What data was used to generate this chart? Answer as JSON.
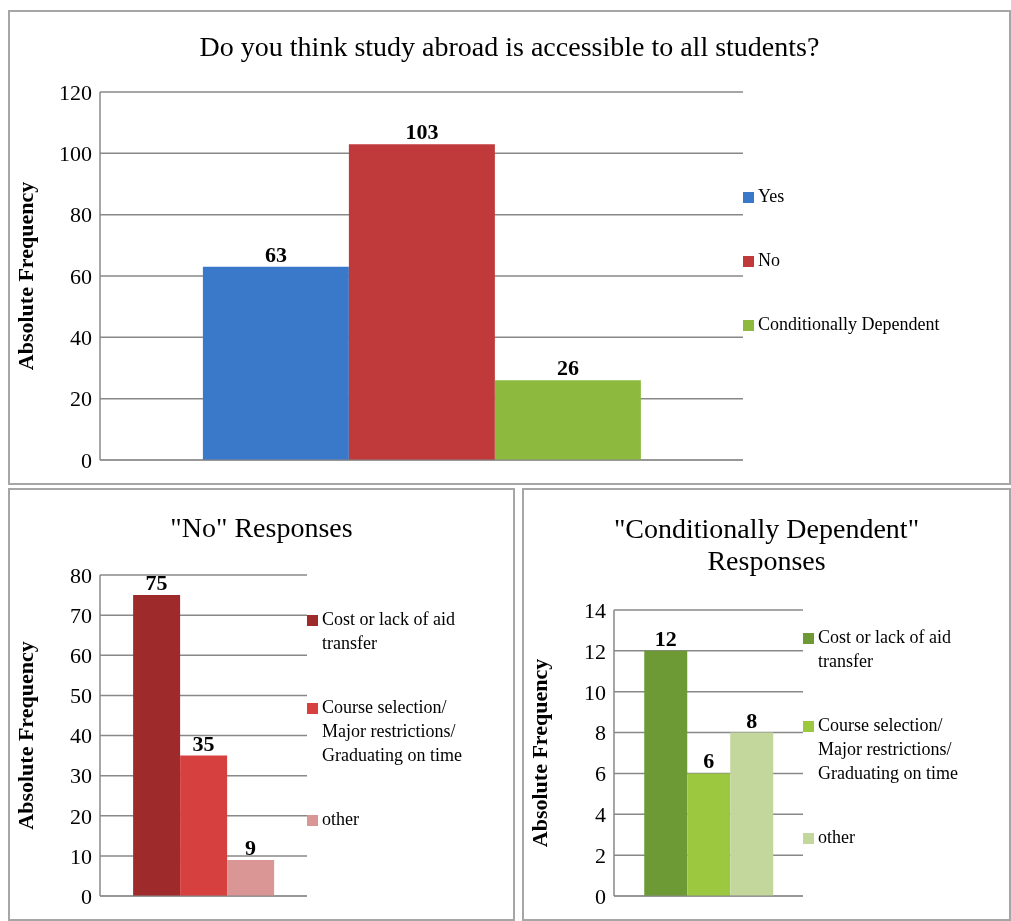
{
  "chart_data": [
    {
      "type": "bar",
      "title": "Do you think study abroad is accessible to all students?",
      "ylabel": "Absolute Frequency",
      "categories": [
        null
      ],
      "series": [
        {
          "name": "Yes",
          "color": "#3a78c9",
          "values": [
            63
          ]
        },
        {
          "name": "No",
          "color": "#c0393b",
          "values": [
            103
          ]
        },
        {
          "name": "Conditionally Dependent",
          "color": "#8db93e",
          "values": [
            26
          ]
        }
      ],
      "ylim": [
        0,
        120
      ],
      "yticks": [
        0,
        20,
        40,
        60,
        80,
        100,
        120
      ],
      "grid": "y",
      "legend": "right",
      "data_labels": true
    },
    {
      "type": "bar",
      "title": "\"No\" Responses",
      "ylabel": "Absolute Frequency",
      "categories": [
        null
      ],
      "series": [
        {
          "name": "Cost or lack of aid transfer",
          "color": "#9e2a2b",
          "values": [
            75
          ]
        },
        {
          "name": "Course selection/ Major restrictions/ Graduating on time",
          "color": "#d6403e",
          "values": [
            35
          ]
        },
        {
          "name": "other",
          "color": "#d99694",
          "values": [
            9
          ]
        }
      ],
      "ylim": [
        0,
        80
      ],
      "yticks": [
        0,
        10,
        20,
        30,
        40,
        50,
        60,
        70,
        80
      ],
      "grid": "y",
      "legend": "right",
      "data_labels": true
    },
    {
      "type": "bar",
      "title": "\"Conditionally Dependent\" Responses",
      "ylabel": "Absolute Frequency",
      "categories": [
        null
      ],
      "series": [
        {
          "name": "Cost or lack of aid transfer",
          "color": "#6e9a35",
          "values": [
            12
          ]
        },
        {
          "name": "Course selection/ Major restrictions/ Graduating on time",
          "color": "#9bc83f",
          "values": [
            6
          ]
        },
        {
          "name": "other",
          "color": "#c3d69b",
          "values": [
            8
          ]
        }
      ],
      "ylim": [
        0,
        14
      ],
      "yticks": [
        0,
        2,
        4,
        6,
        8,
        10,
        12,
        14
      ],
      "grid": "y",
      "legend": "right",
      "data_labels": true
    }
  ]
}
